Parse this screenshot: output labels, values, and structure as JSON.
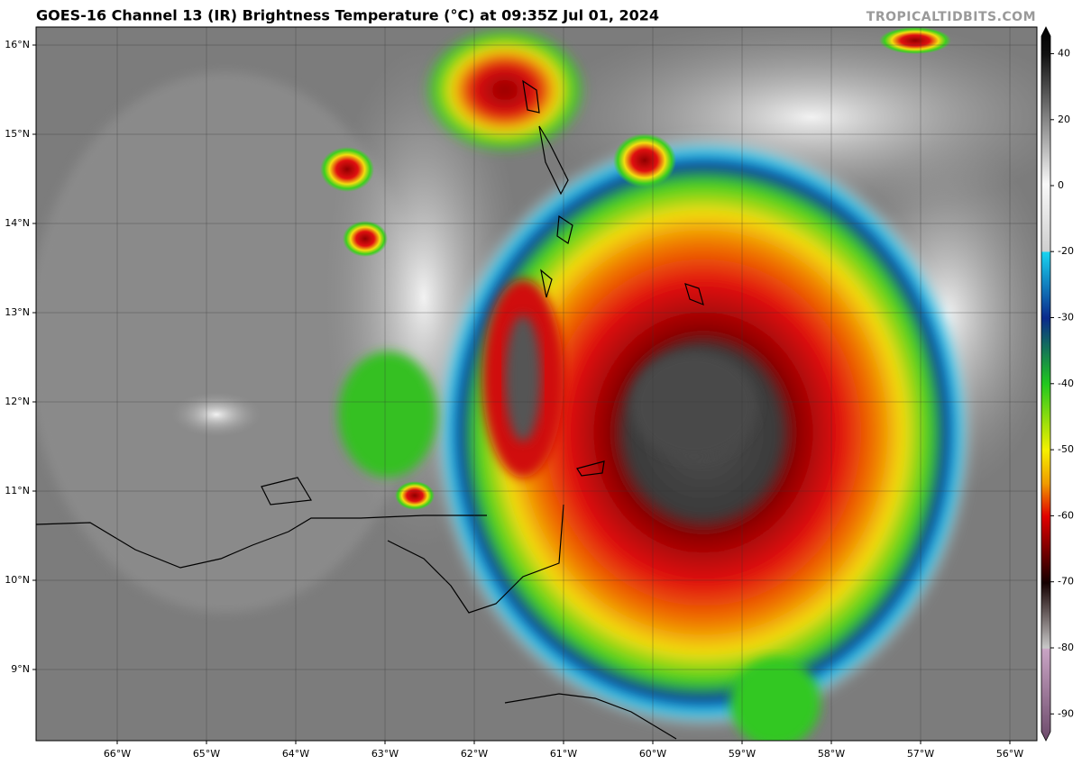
{
  "header": {
    "title": "GOES-16 Channel 13 (IR) Brightness Temperature (°C) at 09:35Z Jul 01, 2024",
    "watermark": "TROPICALTIDBITS.COM"
  },
  "map": {
    "longitude_labels": [
      "66°W",
      "65°W",
      "64°W",
      "63°W",
      "62°W",
      "61°W",
      "60°W",
      "59°W",
      "58°W",
      "57°W",
      "56°W"
    ],
    "latitude_labels": [
      "16°N",
      "15°N",
      "14°N",
      "13°N",
      "12°N",
      "11°N",
      "10°N",
      "9°N"
    ]
  },
  "colorbar": {
    "ticks": [
      40,
      20,
      0,
      -20,
      -30,
      -40,
      -50,
      -60,
      -70,
      -80,
      -90
    ]
  }
}
